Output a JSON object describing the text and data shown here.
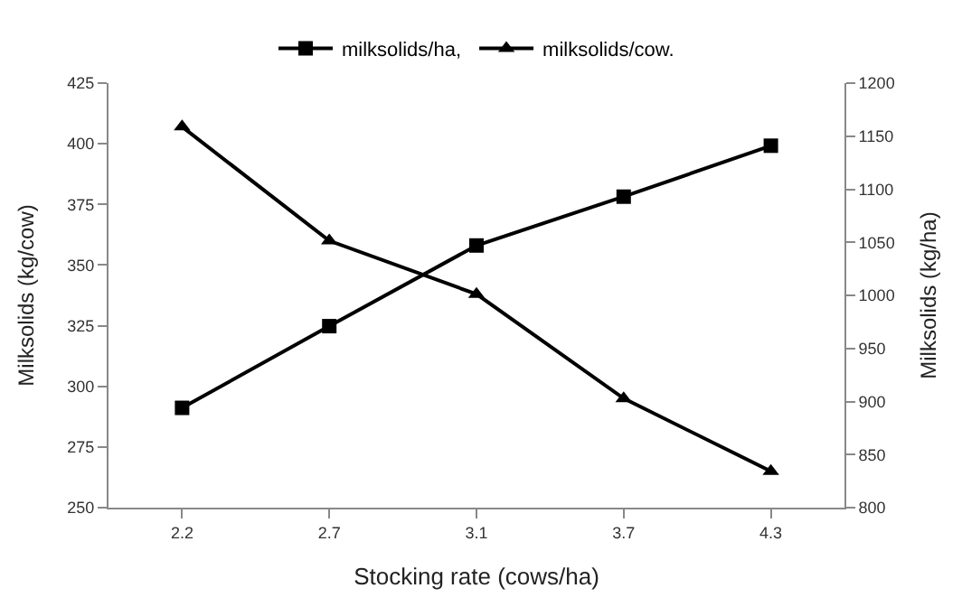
{
  "chart_data": {
    "type": "line",
    "xlabel": "Stocking rate (cows/ha)",
    "ylabel": "Milksolids (kg/cow)",
    "y2label": "Milksolids (kg/ha)",
    "categories": [
      "2.2",
      "2.7",
      "3.1",
      "3.7",
      "4.3"
    ],
    "series": [
      {
        "name": "milksolids/ha,",
        "color": "#000000",
        "marker": "square",
        "axis": "y2",
        "values": [
          894,
          971,
          1047,
          1093,
          1141
        ]
      },
      {
        "name": "milksolids/cow.",
        "color": "#000000",
        "marker": "triangle",
        "values": [
          407,
          360,
          338,
          295,
          265
        ]
      }
    ],
    "ylim": [
      250,
      425
    ],
    "yticks": [
      250,
      275,
      300,
      325,
      350,
      375,
      400,
      425
    ],
    "y2lim": [
      800,
      1200
    ],
    "y2ticks": [
      800,
      850,
      900,
      950,
      1000,
      1050,
      1100,
      1150,
      1200
    ],
    "legend": "top",
    "line_style": "solid"
  }
}
